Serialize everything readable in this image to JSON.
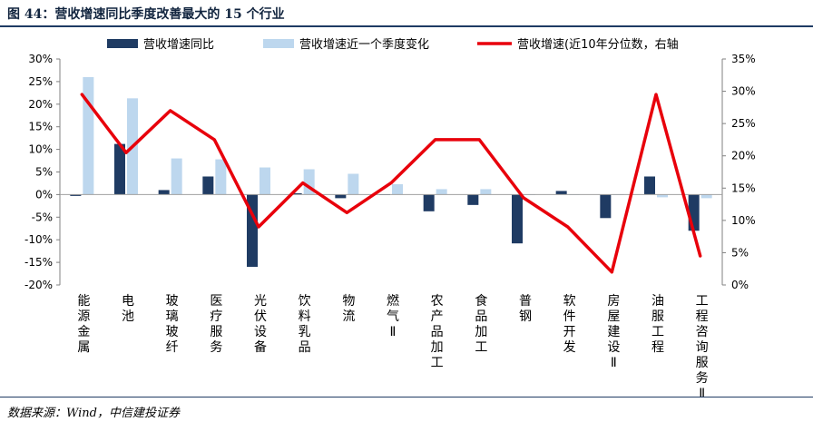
{
  "figure": {
    "title": "图 44：营收增速同比季度改善最大的 15 个行业",
    "source": "数据来源：Wind，中信建投证券"
  },
  "chart_data": {
    "type": "bar",
    "categories": [
      "能源金属",
      "电池",
      "玻璃玻纤",
      "医疗服务",
      "光伏设备",
      "饮料乳品",
      "物流",
      "燃气Ⅱ",
      "农产品加工",
      "食品加工",
      "普钢",
      "软件开发",
      "房屋建设Ⅱ",
      "油服工程",
      "工程咨询服务Ⅱ"
    ],
    "series": [
      {
        "name": "营收增速同比",
        "type": "bar",
        "axis": "left",
        "color": "#1f3b63",
        "values": [
          -0.3,
          11.2,
          1.0,
          4.0,
          -16.0,
          0.3,
          -0.8,
          0.0,
          -3.7,
          -2.3,
          -10.8,
          0.8,
          -5.2,
          4.0,
          -8.0
        ]
      },
      {
        "name": "营收增速近一个季度变化",
        "type": "bar",
        "axis": "left",
        "color": "#bdd7ee",
        "values": [
          26.0,
          21.3,
          8.0,
          7.8,
          6.0,
          5.6,
          4.6,
          2.3,
          1.2,
          1.2,
          0.0,
          0.0,
          0.0,
          -0.6,
          -0.8
        ]
      },
      {
        "name": "营收增速(近10年分位数，右轴",
        "type": "line",
        "axis": "right",
        "color": "#e8000b",
        "values": [
          29.5,
          20.5,
          27.0,
          22.5,
          9.0,
          15.8,
          11.2,
          15.8,
          22.5,
          22.5,
          13.5,
          9.0,
          2.0,
          29.5,
          4.5
        ]
      }
    ],
    "left_axis": {
      "min": -20,
      "max": 30,
      "step": 5,
      "format": "percent"
    },
    "right_axis": {
      "min": 0,
      "max": 35,
      "step": 5,
      "format": "percent"
    },
    "legend_position": "top",
    "grid": false
  }
}
